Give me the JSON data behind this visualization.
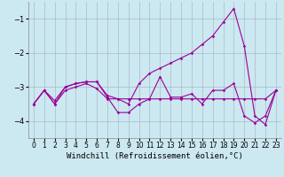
{
  "x": [
    0,
    1,
    2,
    3,
    4,
    5,
    6,
    7,
    8,
    9,
    10,
    11,
    12,
    13,
    14,
    15,
    16,
    17,
    18,
    19,
    20,
    21,
    22,
    23
  ],
  "s1": [
    -3.5,
    -3.1,
    -3.5,
    -3.1,
    -3.0,
    -2.9,
    -3.05,
    -3.35,
    -3.35,
    -3.35,
    -3.35,
    -3.35,
    -3.35,
    -3.35,
    -3.35,
    -3.35,
    -3.35,
    -3.35,
    -3.35,
    -3.35,
    -3.35,
    -3.35,
    -3.35,
    -3.1
  ],
  "s2": [
    -3.5,
    -3.1,
    -3.5,
    -3.0,
    -2.9,
    -2.85,
    -2.85,
    -3.3,
    -3.75,
    -3.75,
    -3.5,
    -3.35,
    -2.7,
    -3.3,
    -3.3,
    -3.2,
    -3.5,
    -3.1,
    -3.1,
    -2.9,
    -3.85,
    -4.05,
    -3.85,
    -3.1
  ],
  "s3": [
    -3.5,
    -3.1,
    -3.4,
    -3.0,
    -2.9,
    -2.85,
    -2.85,
    -3.25,
    -3.35,
    -3.5,
    -2.9,
    -2.6,
    -2.45,
    -2.3,
    -2.15,
    -2.0,
    -1.75,
    -1.5,
    -1.1,
    -0.7,
    -1.8,
    -3.85,
    -4.1,
    -3.1
  ],
  "line_color": "#990099",
  "bg_color": "#cce8f0",
  "grid_color": "#aabbcc",
  "xlabel": "Windchill (Refroidissement éolien,°C)",
  "ylim": [
    -4.5,
    -0.5
  ],
  "xlim": [
    -0.5,
    23.5
  ],
  "yticks": [
    -4,
    -3,
    -2,
    -1
  ],
  "xticks": [
    0,
    1,
    2,
    3,
    4,
    5,
    6,
    7,
    8,
    9,
    10,
    11,
    12,
    13,
    14,
    15,
    16,
    17,
    18,
    19,
    20,
    21,
    22,
    23
  ],
  "axis_fontsize": 6.5,
  "tick_fontsize": 5.5
}
